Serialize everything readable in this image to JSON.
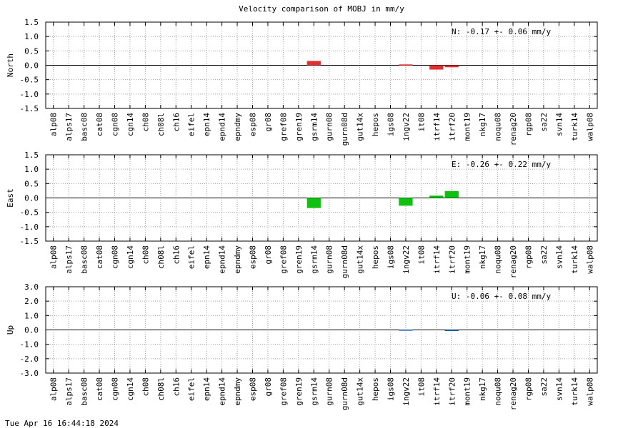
{
  "title": "Velocity comparison of MOBJ in mm/y",
  "timestamp": "Tue Apr 16 16:44:18 2024",
  "chart_data": [
    {
      "type": "bar",
      "ylabel": "North",
      "summary": "N:  -0.17 +-  0.06 mm/y",
      "ylim": [
        -1.5,
        1.5
      ],
      "yticks": [
        "1.5",
        "1.0",
        "0.5",
        "0.0",
        "-0.5",
        "-1.0",
        "-1.5"
      ],
      "color": "#e03030",
      "categories": [
        "alp08",
        "alps17",
        "basc08",
        "cat08",
        "cgn08",
        "cgn14",
        "ch08",
        "ch08l",
        "ch16",
        "eifel",
        "epn14",
        "epnd14",
        "epndmy",
        "esp08",
        "gr08",
        "gref08",
        "gren19",
        "gsrm14",
        "gurn08",
        "gurn08d",
        "gut14x",
        "hepos",
        "igs08",
        "ingv22",
        "it08",
        "itrf14",
        "itrf20",
        "mont19",
        "nkg17",
        "noqu08",
        "renag20",
        "rgp08",
        "sa22",
        "svn14",
        "turk14",
        "walp08"
      ],
      "values": [
        null,
        null,
        null,
        null,
        null,
        null,
        null,
        null,
        null,
        null,
        null,
        null,
        null,
        null,
        null,
        null,
        null,
        0.15,
        null,
        null,
        null,
        null,
        null,
        0.03,
        null,
        -0.15,
        -0.07,
        null,
        null,
        null,
        null,
        null,
        null,
        null,
        null,
        null
      ]
    },
    {
      "type": "bar",
      "ylabel": "East",
      "summary": "E:  -0.26 +-  0.22 mm/y",
      "ylim": [
        -1.5,
        1.5
      ],
      "yticks": [
        "1.5",
        "1.0",
        "0.5",
        "0.0",
        "-0.5",
        "-1.0",
        "-1.5"
      ],
      "color": "#10c010",
      "categories": [
        "alp08",
        "alps17",
        "basc08",
        "cat08",
        "cgn08",
        "cgn14",
        "ch08",
        "ch08l",
        "ch16",
        "eifel",
        "epn14",
        "epnd14",
        "epndmy",
        "esp08",
        "gr08",
        "gref08",
        "gren19",
        "gsrm14",
        "gurn08",
        "gurn08d",
        "gut14x",
        "hepos",
        "igs08",
        "ingv22",
        "it08",
        "itrf14",
        "itrf20",
        "mont19",
        "nkg17",
        "noqu08",
        "renag20",
        "rgp08",
        "sa22",
        "svn14",
        "turk14",
        "walp08"
      ],
      "values": [
        null,
        null,
        null,
        null,
        null,
        null,
        null,
        null,
        null,
        null,
        null,
        null,
        null,
        null,
        null,
        null,
        null,
        -0.35,
        null,
        null,
        null,
        null,
        null,
        -0.27,
        null,
        0.08,
        0.24,
        null,
        null,
        null,
        null,
        null,
        null,
        null,
        null,
        null
      ]
    },
    {
      "type": "bar",
      "ylabel": "Up",
      "summary": "U:  -0.06 +-  0.08 mm/y",
      "ylim": [
        -3.0,
        3.0
      ],
      "yticks": [
        "3.0",
        "2.0",
        "1.0",
        "0.0",
        "-1.0",
        "-2.0",
        "-3.0"
      ],
      "color": "#1060b0",
      "categories": [
        "alp08",
        "alps17",
        "basc08",
        "cat08",
        "cgn08",
        "cgn14",
        "ch08",
        "ch08l",
        "ch16",
        "eifel",
        "epn14",
        "epnd14",
        "epndmy",
        "esp08",
        "gr08",
        "gref08",
        "gren19",
        "gsrm14",
        "gurn08",
        "gurn08d",
        "gut14x",
        "hepos",
        "igs08",
        "ingv22",
        "it08",
        "itrf14",
        "itrf20",
        "mont19",
        "nkg17",
        "noqu08",
        "renag20",
        "rgp08",
        "sa22",
        "svn14",
        "turk14",
        "walp08"
      ],
      "values": [
        null,
        null,
        null,
        null,
        null,
        null,
        null,
        null,
        null,
        null,
        null,
        null,
        null,
        null,
        null,
        null,
        null,
        null,
        null,
        null,
        null,
        null,
        null,
        0.02,
        null,
        null,
        -0.04,
        null,
        null,
        null,
        null,
        null,
        null,
        null,
        null,
        null
      ]
    }
  ]
}
